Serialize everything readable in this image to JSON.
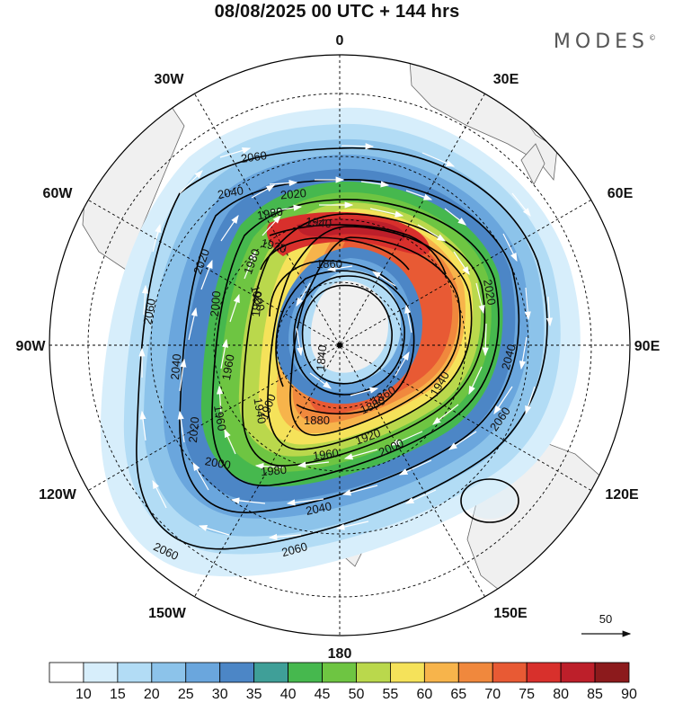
{
  "title": "08/08/2025  00 UTC  + 144 hrs",
  "logo": "MODES",
  "logo_mark": "©",
  "longitude_labels": {
    "lon_0": "0",
    "lon_30e": "30E",
    "lon_60e": "60E",
    "lon_90e": "90E",
    "lon_120e": "120E",
    "lon_150e": "150E",
    "lon_180": "180",
    "lon_150w": "150W",
    "lon_120w": "120W",
    "lon_90w": "90W",
    "lon_60w": "60W",
    "lon_30w": "30W"
  },
  "contour_labels": {
    "c2060_a": "2060",
    "c2060_b": "2060",
    "c2060_c": "2060",
    "c2060_d": "2060",
    "c2060_e": "2060",
    "c2040_a": "2040",
    "c2040_b": "2040",
    "c2040_c": "2040",
    "c2040_d": "2040",
    "c2020_a": "2020",
    "c2020_b": "2020",
    "c2020_c": "2020",
    "c2020_d": "2020",
    "c2000_a": "2000",
    "c2000_b": "2000",
    "c2000_c": "2000",
    "c1980_a": "1980",
    "c1980_b": "1980",
    "c1980_c": "1980",
    "c1960_a": "1960",
    "c1960_b": "1960",
    "c1960_c": "1960",
    "c1940_a": "1940",
    "c1940_b": "1940",
    "c1940_c": "1940",
    "c1920_a": "1920",
    "c1920_b": "1920",
    "c1920_c": "1920",
    "c1900_a": "1900",
    "c1900_b": "1900",
    "c1880_a": "1880",
    "c1880_b": "1880",
    "c1860_a": "1860",
    "c1860_b": "1860",
    "c1840_a": "1840"
  },
  "vector_reference": {
    "label": "50"
  },
  "colorbar": {
    "colors": [
      "#ffffff",
      "#d7eefb",
      "#b2dcf5",
      "#8cc3ea",
      "#6aa6dd",
      "#4c86c6",
      "#3f9f98",
      "#46b84e",
      "#6ec542",
      "#bad84c",
      "#f5e25a",
      "#f7b44b",
      "#f0883d",
      "#e85a34",
      "#d8302c",
      "#bd1f2a",
      "#8c1a1c"
    ],
    "tick_labels": [
      "10",
      "15",
      "20",
      "25",
      "30",
      "35",
      "40",
      "45",
      "50",
      "55",
      "60",
      "65",
      "70",
      "75",
      "80",
      "85",
      "90"
    ]
  }
}
